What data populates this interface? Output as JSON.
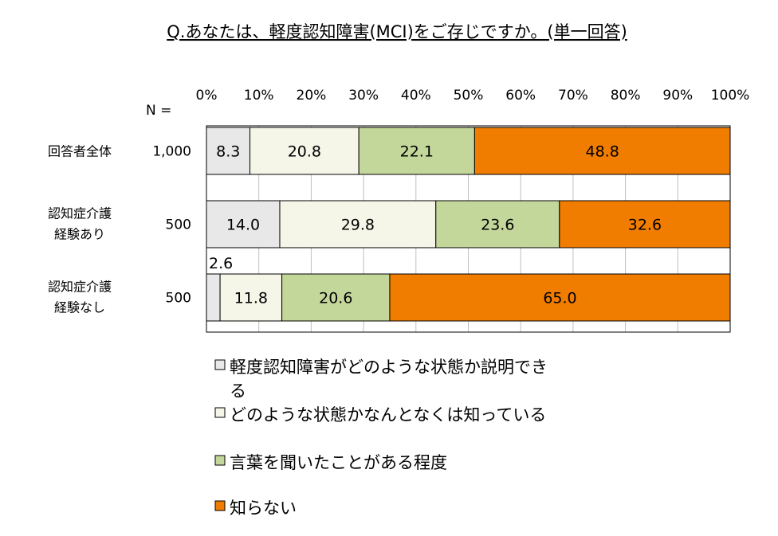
{
  "chart_data": {
    "type": "bar",
    "orientation": "horizontal",
    "stacked": true,
    "title": "Q.あなたは、軽度認知障害(MCI)をご存じですか。(単一回答)",
    "xlim": [
      0,
      100
    ],
    "x_ticks": [
      "0%",
      "10%",
      "20%",
      "30%",
      "40%",
      "50%",
      "60%",
      "70%",
      "80%",
      "90%",
      "100%"
    ],
    "grid": true,
    "n_header": "N =",
    "legend_position": "bottom",
    "categories": [
      {
        "label_lines": [
          "回答者全体"
        ],
        "n": "1,000"
      },
      {
        "label_lines": [
          "認知症介護",
          "経験あり"
        ],
        "n": "500"
      },
      {
        "label_lines": [
          "認知症介護",
          "経験なし"
        ],
        "n": "500"
      }
    ],
    "series": [
      {
        "name": "軽度認知障害がどのような状態か説明できる",
        "legend_lines": [
          "軽度認知障害がどのような状態か説明でき",
          "る"
        ],
        "color": "#e8e8e8",
        "values": [
          8.3,
          14.0,
          2.6
        ],
        "labels": [
          "8.3",
          "14.0",
          "2.6"
        ]
      },
      {
        "name": "どのような状態かなんとなくは知っている",
        "legend_lines": [
          "どのような状態かなんとなくは知っている"
        ],
        "color": "#f5f5e8",
        "values": [
          20.8,
          29.8,
          11.8
        ],
        "labels": [
          "20.8",
          "29.8",
          "11.8"
        ]
      },
      {
        "name": "言葉を聞いたことがある程度",
        "legend_lines": [
          "言葉を聞いたことがある程度"
        ],
        "color": "#c4d79b",
        "values": [
          22.1,
          23.6,
          20.6
        ],
        "labels": [
          "22.1",
          "23.6",
          "20.6"
        ]
      },
      {
        "name": "知らない",
        "legend_lines": [
          "知らない"
        ],
        "color": "#f07c00",
        "values": [
          48.8,
          32.6,
          65.0
        ],
        "labels": [
          "48.8",
          "32.6",
          "65.0"
        ]
      }
    ]
  }
}
